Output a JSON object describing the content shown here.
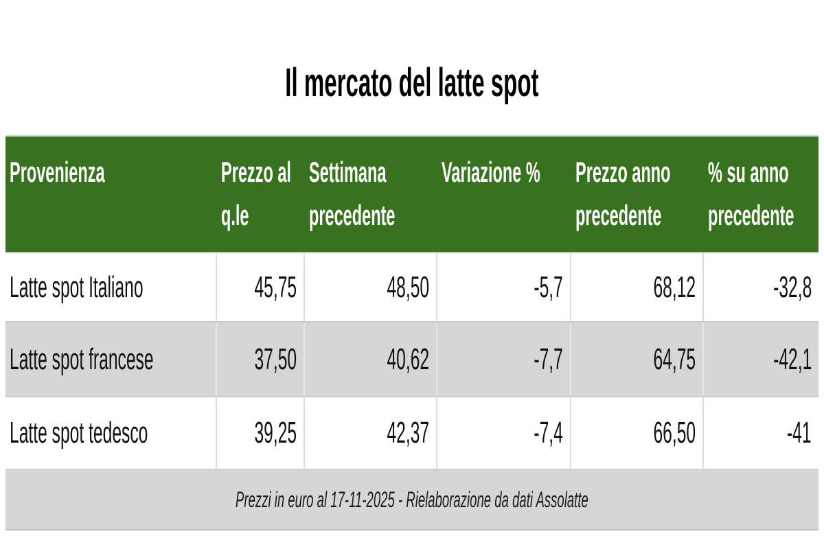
{
  "title": "Il mercato del latte spot",
  "table": {
    "columns": [
      "Provenienza",
      "Prezzo al\nq.le",
      "Settimana\nprecedente",
      "Variazione %",
      "Prezzo anno\nprecedente",
      "% su anno\nprecedente"
    ],
    "rows": [
      [
        "Latte spot Italiano",
        "45,75",
        "48,50",
        "-5,7",
        "68,12",
        "-32,8"
      ],
      [
        "Latte spot francese",
        "37,50",
        "40,62",
        "-7,7",
        "64,75",
        "-42,1"
      ],
      [
        "Latte spot tedesco",
        "39,25",
        "42,37",
        "-7,4",
        "66,50",
        "-41"
      ]
    ],
    "footer_note": "Prezzi in euro al 17-11-2025 - Rielaborazione da dati Assolatte"
  },
  "chart_data": {
    "type": "table",
    "title": "Il mercato del latte spot",
    "columns": [
      "Provenienza",
      "Prezzo al q.le",
      "Settimana precedente",
      "Variazione %",
      "Prezzo anno precedente",
      "% su anno precedente"
    ],
    "rows": [
      [
        "Latte spot Italiano",
        45.75,
        48.5,
        -5.7,
        68.12,
        -32.8
      ],
      [
        "Latte spot francese",
        37.5,
        40.62,
        -7.7,
        64.75,
        -42.1
      ],
      [
        "Latte spot tedesco",
        39.25,
        42.37,
        -7.4,
        66.5,
        -41
      ]
    ],
    "note": "Prezzi in euro al 17-11-2025 - Rielaborazione da dati Assolatte"
  },
  "colors": {
    "header_bg": "#37731e",
    "header_text": "#ffffff",
    "stripe_bg": "#d6d6d6",
    "row_bg": "#ffffff",
    "grid_line": "#c9c9c9",
    "column_line": "#dcdcdc",
    "title_text": "#000000",
    "body_text": "#111111"
  }
}
